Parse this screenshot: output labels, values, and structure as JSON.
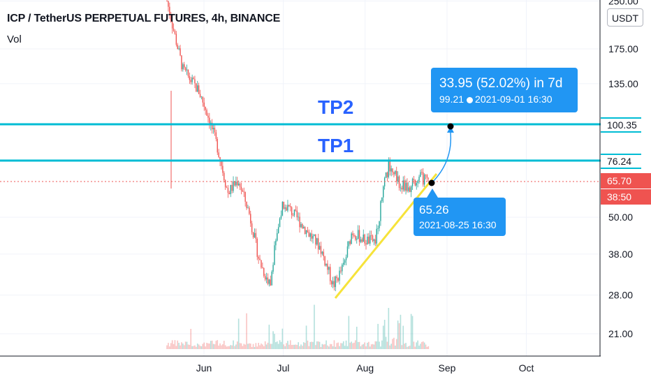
{
  "header": {
    "title": "ICP / TetherUS PERPETUAL FUTURES, 4h, BINANCE",
    "indicator": "Vol",
    "currency_button": "USDT"
  },
  "levels": {
    "tp2": {
      "label": "TP2",
      "price": "100.35"
    },
    "tp1": {
      "label": "TP1",
      "price": "76.24"
    }
  },
  "current_price": {
    "value": "65.70",
    "countdown": "38:50"
  },
  "projection": {
    "change_text": "33.95 (52.02%) in 7d",
    "target_price": "99.21",
    "target_time": "2021-09-01  16:30",
    "start_price": "65.26",
    "start_time": "2021-08-25 16:30"
  },
  "colors": {
    "up": "#26a69a",
    "down": "#ef5350",
    "tp_line": "#00bcd4",
    "callout": "#2196f3",
    "trendline": "#f6e33a",
    "tp_text": "#2962ff"
  },
  "chart_data": {
    "type": "candlestick",
    "title": "ICP / TetherUS PERPETUAL FUTURES, 4h, BINANCE",
    "y_scale": "log",
    "y_ticks": [
      "250.00",
      "175.00",
      "135.00",
      "100.35",
      "76.24",
      "65.70",
      "50.00",
      "38.00",
      "28.00",
      "21.00"
    ],
    "x_ticks": [
      "Jun",
      "Jul",
      "Aug",
      "Sep",
      "Oct"
    ],
    "approx_price_path": [
      {
        "date": "2021-05-18",
        "price": 250
      },
      {
        "date": "2021-05-20",
        "price": 210
      },
      {
        "date": "2021-05-24",
        "price": 150
      },
      {
        "date": "2021-05-30",
        "price": 128
      },
      {
        "date": "2021-06-02",
        "price": 110
      },
      {
        "date": "2021-06-06",
        "price": 85
      },
      {
        "date": "2021-06-10",
        "price": 60
      },
      {
        "date": "2021-06-14",
        "price": 66
      },
      {
        "date": "2021-06-18",
        "price": 52
      },
      {
        "date": "2021-06-22",
        "price": 36
      },
      {
        "date": "2021-06-26",
        "price": 30
      },
      {
        "date": "2021-06-28",
        "price": 42
      },
      {
        "date": "2021-07-01",
        "price": 56
      },
      {
        "date": "2021-07-06",
        "price": 50
      },
      {
        "date": "2021-07-10",
        "price": 45
      },
      {
        "date": "2021-07-15",
        "price": 40
      },
      {
        "date": "2021-07-20",
        "price": 30
      },
      {
        "date": "2021-07-24",
        "price": 35
      },
      {
        "date": "2021-07-27",
        "price": 45
      },
      {
        "date": "2021-08-01",
        "price": 42
      },
      {
        "date": "2021-08-05",
        "price": 42
      },
      {
        "date": "2021-08-08",
        "price": 63
      },
      {
        "date": "2021-08-10",
        "price": 74
      },
      {
        "date": "2021-08-14",
        "price": 64
      },
      {
        "date": "2021-08-18",
        "price": 62
      },
      {
        "date": "2021-08-21",
        "price": 68
      },
      {
        "date": "2021-08-25",
        "price": 65.26
      }
    ],
    "annotations": [
      {
        "type": "horizontal",
        "label": "TP2",
        "price": 100.35
      },
      {
        "type": "horizontal",
        "label": "TP1",
        "price": 76.24
      },
      {
        "type": "current_price",
        "price": 65.7
      },
      {
        "type": "trendline",
        "from": {
          "date": "2021-07-20",
          "price": 28
        },
        "to": {
          "date": "2021-08-27",
          "price": 68
        }
      },
      {
        "type": "projection",
        "from": {
          "date": "2021-08-25 16:30",
          "price": 65.26
        },
        "to": {
          "date": "2021-09-01 16:30",
          "price": 99.21
        },
        "change": "33.95 (52.02%) in 7d"
      }
    ]
  }
}
